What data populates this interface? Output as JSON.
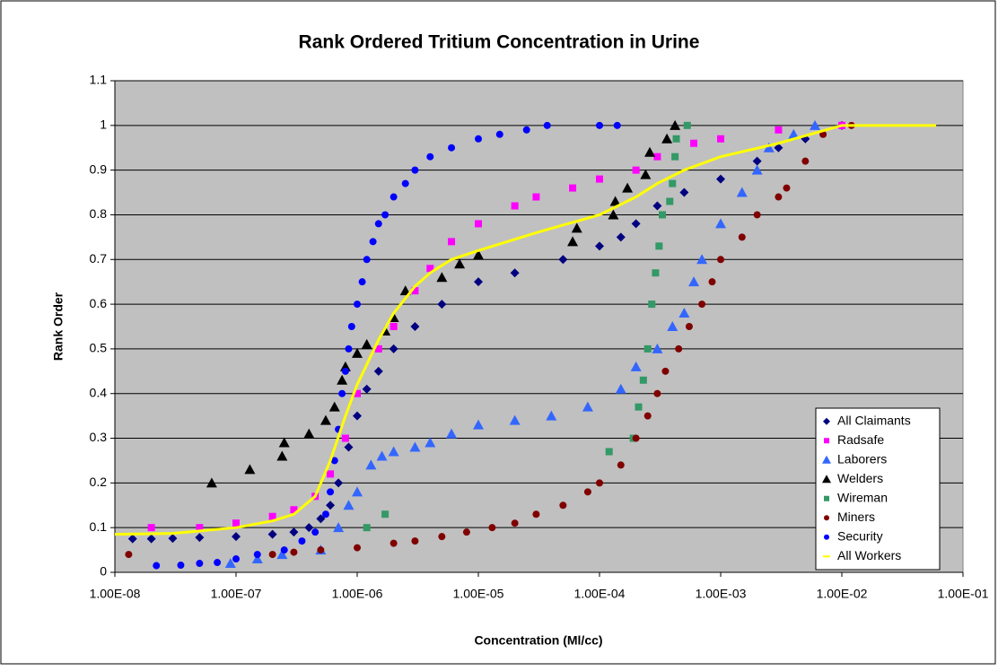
{
  "chart_data": {
    "type": "scatter",
    "title": "Rank Ordered Tritium Concentration in Urine",
    "x_label": "Concentration (Ml/cc)",
    "y_label": "Rank Order",
    "xscale": "log",
    "xlim": [
      1e-08,
      0.1
    ],
    "xticks": [
      {
        "value": 1e-08,
        "label": "1.00E-08"
      },
      {
        "value": 1e-07,
        "label": "1.00E-07"
      },
      {
        "value": 1e-06,
        "label": "1.00E-06"
      },
      {
        "value": 1e-05,
        "label": "1.00E-05"
      },
      {
        "value": 0.0001,
        "label": "1.00E-04"
      },
      {
        "value": 0.001,
        "label": "1.00E-03"
      },
      {
        "value": 0.01,
        "label": "1.00E-02"
      },
      {
        "value": 0.1,
        "label": "1.00E-01"
      }
    ],
    "ylim": [
      0,
      1.1
    ],
    "yticks": [
      0,
      0.1,
      0.2,
      0.3,
      0.4,
      0.5,
      0.6,
      0.7,
      0.8,
      0.9,
      1,
      1.1
    ],
    "grid": true,
    "legend": "lower-right",
    "series": [
      {
        "name": "All Claimants",
        "color": "#000080",
        "marker": "diamond",
        "x": [
          1.4e-08,
          2e-08,
          3e-08,
          5e-08,
          1e-07,
          2e-07,
          3e-07,
          4e-07,
          5e-07,
          6e-07,
          7e-07,
          8.5e-07,
          1e-06,
          1.2e-06,
          1.5e-06,
          2e-06,
          3e-06,
          5e-06,
          1e-05,
          2e-05,
          5e-05,
          0.0001,
          0.00015,
          0.0002,
          0.0003,
          0.0005,
          0.001,
          0.002,
          0.003,
          0.005,
          0.01
        ],
        "y": [
          0.075,
          0.075,
          0.076,
          0.078,
          0.08,
          0.085,
          0.09,
          0.1,
          0.12,
          0.15,
          0.2,
          0.28,
          0.35,
          0.41,
          0.45,
          0.5,
          0.55,
          0.6,
          0.65,
          0.67,
          0.7,
          0.73,
          0.75,
          0.78,
          0.82,
          0.85,
          0.88,
          0.92,
          0.95,
          0.97,
          1.0
        ]
      },
      {
        "name": "Radsafe",
        "color": "#ff00ff",
        "marker": "square",
        "x": [
          2e-08,
          5e-08,
          1e-07,
          2e-07,
          3e-07,
          4.5e-07,
          6e-07,
          8e-07,
          1e-06,
          1.5e-06,
          2e-06,
          3e-06,
          4e-06,
          6e-06,
          1e-05,
          2e-05,
          3e-05,
          6e-05,
          0.0001,
          0.0002,
          0.0003,
          0.0006,
          0.001,
          0.003,
          0.01
        ],
        "y": [
          0.1,
          0.1,
          0.11,
          0.125,
          0.14,
          0.17,
          0.22,
          0.3,
          0.4,
          0.5,
          0.55,
          0.63,
          0.68,
          0.74,
          0.78,
          0.82,
          0.84,
          0.86,
          0.88,
          0.9,
          0.93,
          0.96,
          0.97,
          0.99,
          1.0
        ]
      },
      {
        "name": "Laborers",
        "color": "#3366ff",
        "marker": "triangle",
        "x": [
          9e-08,
          1.5e-07,
          2.4e-07,
          5e-07,
          7e-07,
          8.5e-07,
          1e-06,
          1.3e-06,
          1.6e-06,
          2e-06,
          3e-06,
          4e-06,
          6e-06,
          1e-05,
          2e-05,
          4e-05,
          8e-05,
          0.00015,
          0.0002,
          0.0003,
          0.0004,
          0.0005,
          0.0006,
          0.0007,
          0.001,
          0.0015,
          0.002,
          0.0025,
          0.004,
          0.006
        ],
        "y": [
          0.02,
          0.03,
          0.04,
          0.05,
          0.1,
          0.15,
          0.18,
          0.24,
          0.26,
          0.27,
          0.28,
          0.29,
          0.31,
          0.33,
          0.34,
          0.35,
          0.37,
          0.41,
          0.46,
          0.5,
          0.55,
          0.58,
          0.65,
          0.7,
          0.78,
          0.85,
          0.9,
          0.95,
          0.98,
          1.0
        ]
      },
      {
        "name": "Welders",
        "color": "#000000",
        "marker": "triangle",
        "x": [
          6.3e-08,
          1.3e-07,
          2.4e-07,
          2.5e-07,
          4e-07,
          5.5e-07,
          6.5e-07,
          7.5e-07,
          8e-07,
          1e-06,
          1.2e-06,
          1.7e-06,
          2e-06,
          2.5e-06,
          5e-06,
          7e-06,
          1e-05,
          6e-05,
          6.5e-05,
          0.00013,
          0.000135,
          0.00017,
          0.00024,
          0.00026,
          0.00036,
          0.00042
        ],
        "y": [
          0.2,
          0.23,
          0.26,
          0.29,
          0.31,
          0.34,
          0.37,
          0.43,
          0.46,
          0.49,
          0.51,
          0.54,
          0.57,
          0.63,
          0.66,
          0.69,
          0.71,
          0.74,
          0.77,
          0.8,
          0.83,
          0.86,
          0.89,
          0.94,
          0.97,
          1.0
        ]
      },
      {
        "name": "Wireman",
        "color": "#339966",
        "marker": "square",
        "x": [
          1.2e-06,
          1.7e-06,
          0.00012,
          0.00019,
          0.00021,
          0.00023,
          0.00025,
          0.00027,
          0.00029,
          0.00031,
          0.00033,
          0.00038,
          0.0004,
          0.00042,
          0.00043,
          0.00053
        ],
        "y": [
          0.1,
          0.13,
          0.27,
          0.3,
          0.37,
          0.43,
          0.5,
          0.6,
          0.67,
          0.73,
          0.8,
          0.83,
          0.87,
          0.93,
          0.97,
          1.0
        ]
      },
      {
        "name": "Miners",
        "color": "#800000",
        "marker": "circle",
        "x": [
          1.3e-08,
          2e-07,
          3e-07,
          5e-07,
          1e-06,
          2e-06,
          3e-06,
          5e-06,
          8e-06,
          1.3e-05,
          2e-05,
          3e-05,
          5e-05,
          8e-05,
          0.0001,
          0.00015,
          0.0002,
          0.00025,
          0.0003,
          0.00035,
          0.00045,
          0.00055,
          0.0007,
          0.00085,
          0.001,
          0.0015,
          0.002,
          0.003,
          0.0035,
          0.005,
          0.007,
          0.012
        ],
        "y": [
          0.04,
          0.04,
          0.045,
          0.05,
          0.055,
          0.065,
          0.07,
          0.08,
          0.09,
          0.1,
          0.11,
          0.13,
          0.15,
          0.18,
          0.2,
          0.24,
          0.3,
          0.35,
          0.4,
          0.45,
          0.5,
          0.55,
          0.6,
          0.65,
          0.7,
          0.75,
          0.8,
          0.84,
          0.86,
          0.92,
          0.98,
          1.0
        ]
      },
      {
        "name": "Security",
        "color": "#0000ff",
        "marker": "circle",
        "x": [
          2.2e-08,
          3.5e-08,
          5e-08,
          7e-08,
          1e-07,
          1.5e-07,
          2.5e-07,
          3.5e-07,
          4.5e-07,
          5.5e-07,
          6e-07,
          6.5e-07,
          7e-07,
          7.5e-07,
          8e-07,
          8.5e-07,
          9e-07,
          1e-06,
          1.1e-06,
          1.2e-06,
          1.35e-06,
          1.5e-06,
          1.7e-06,
          2e-06,
          2.5e-06,
          3e-06,
          4e-06,
          6e-06,
          1e-05,
          1.5e-05,
          2.5e-05,
          3.7e-05,
          0.0001,
          0.00014
        ],
        "y": [
          0.015,
          0.016,
          0.02,
          0.022,
          0.03,
          0.04,
          0.05,
          0.07,
          0.09,
          0.13,
          0.18,
          0.25,
          0.32,
          0.4,
          0.45,
          0.5,
          0.55,
          0.6,
          0.65,
          0.7,
          0.74,
          0.78,
          0.8,
          0.84,
          0.87,
          0.9,
          0.93,
          0.95,
          0.97,
          0.98,
          0.99,
          1.0,
          1.0,
          1.0
        ]
      },
      {
        "name": "All Workers",
        "color": "#ffff00",
        "marker": "line",
        "x": [
          1e-08,
          3e-08,
          1e-07,
          2e-07,
          3e-07,
          4.5e-07,
          6e-07,
          8e-07,
          1e-06,
          1.5e-06,
          2e-06,
          3e-06,
          4e-06,
          6e-06,
          1e-05,
          3e-05,
          0.0001,
          0.0002,
          0.0003,
          0.0005,
          0.001,
          0.003,
          0.01,
          0.027,
          0.06
        ],
        "y": [
          0.085,
          0.087,
          0.1,
          0.115,
          0.13,
          0.17,
          0.25,
          0.35,
          0.42,
          0.52,
          0.58,
          0.64,
          0.67,
          0.7,
          0.72,
          0.76,
          0.8,
          0.84,
          0.87,
          0.9,
          0.93,
          0.96,
          1.0,
          1.0,
          1.0
        ]
      }
    ]
  }
}
